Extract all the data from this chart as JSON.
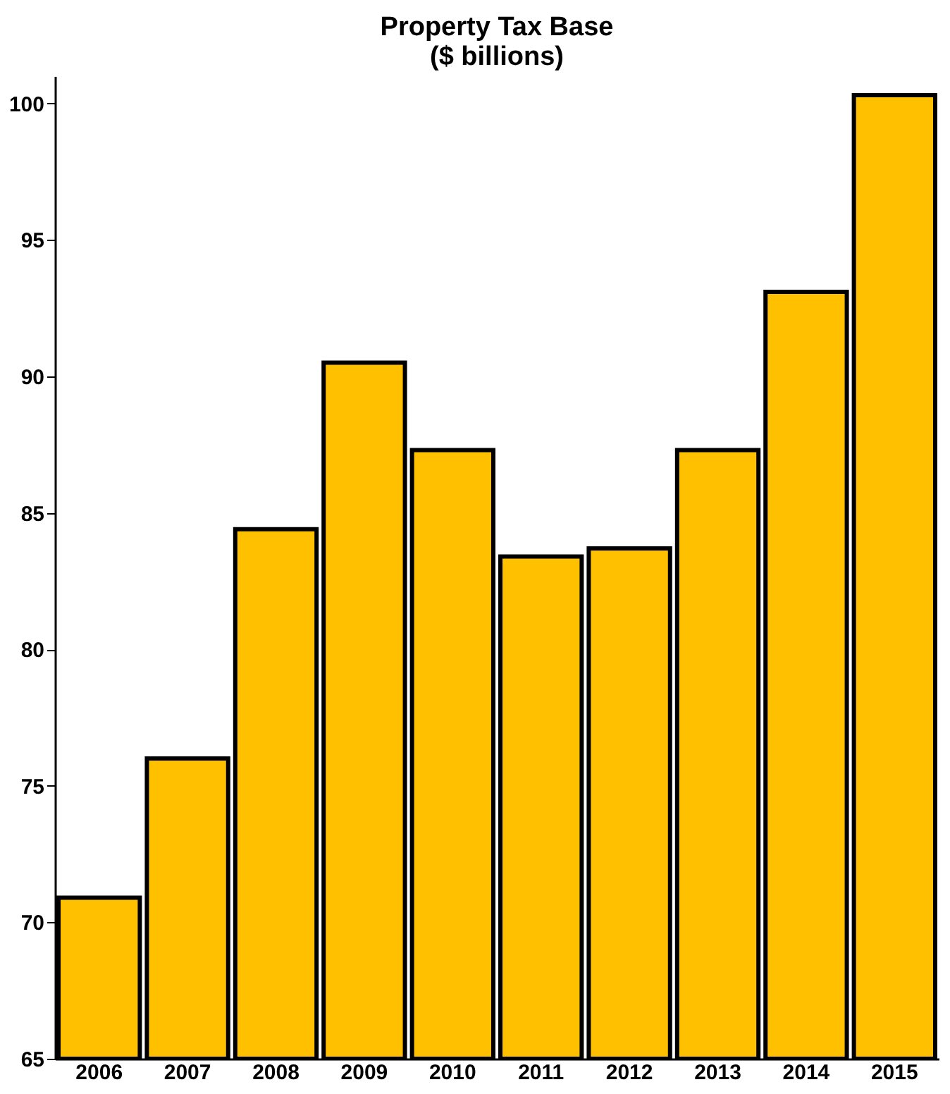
{
  "chart_data": {
    "type": "bar",
    "title": [
      "Property Tax Base",
      "($ billions)"
    ],
    "categories": [
      "2006",
      "2007",
      "2008",
      "2009",
      "2010",
      "2011",
      "2012",
      "2013",
      "2014",
      "2015"
    ],
    "values": [
      70.9,
      76.0,
      84.4,
      90.5,
      87.3,
      83.4,
      83.7,
      87.3,
      93.1,
      100.3
    ],
    "color": "#ffc000",
    "ylim": [
      65,
      101
    ],
    "yticks": [
      65,
      70,
      75,
      80,
      85,
      90,
      95,
      100
    ],
    "grid": false
  }
}
